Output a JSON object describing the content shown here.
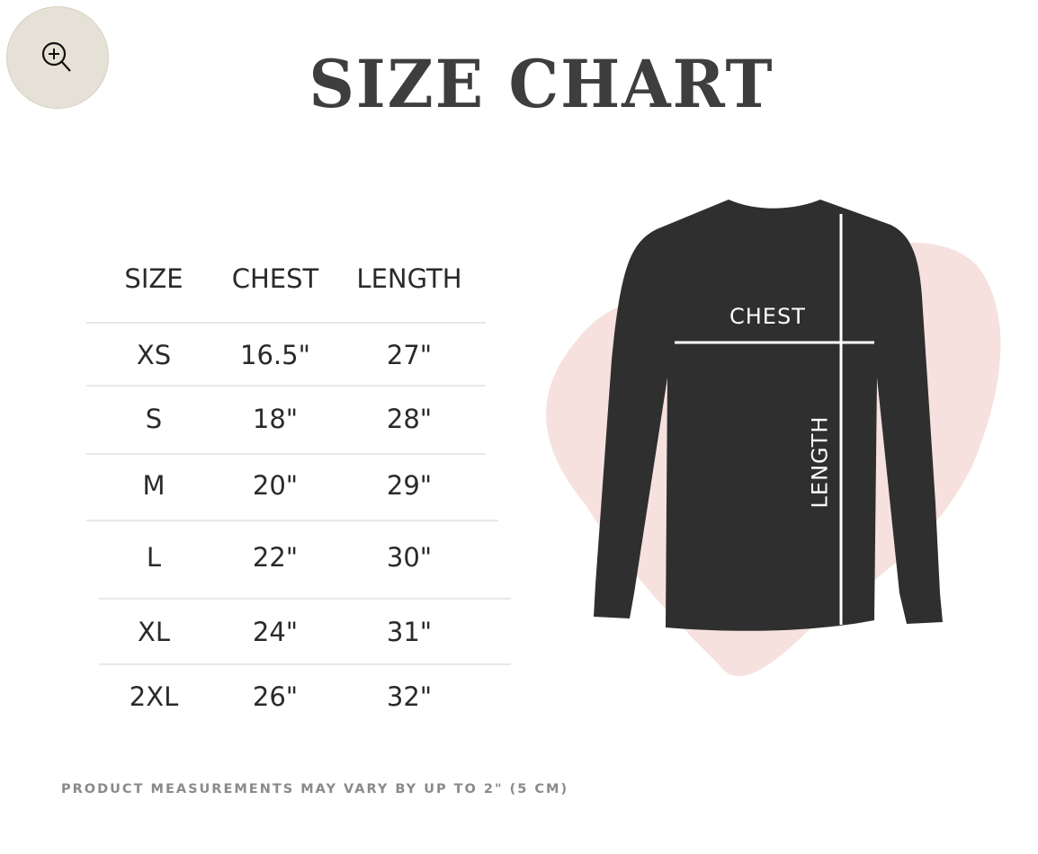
{
  "zoom_button": {
    "icon": "zoom-in-icon"
  },
  "title": "SIZE CHART",
  "table": {
    "headers": [
      "SIZE",
      "CHEST",
      "LENGTH"
    ],
    "rows": [
      [
        "XS",
        "16.5\"",
        "27\""
      ],
      [
        "S",
        "18\"",
        "28\""
      ],
      [
        "M",
        "20\"",
        "29\""
      ],
      [
        "L",
        "22\"",
        "30\""
      ],
      [
        "XL",
        "24\"",
        "31\""
      ],
      [
        "2XL",
        "26\"",
        "32\""
      ]
    ]
  },
  "diagram": {
    "chest_label": "CHEST",
    "length_label": "LENGTH",
    "shirt_color": "#2f2f2f",
    "splash_color": "#f2d9d6"
  },
  "note": "PRODUCT MEASUREMENTS MAY VARY BY UP TO 2\" (5 CM)"
}
